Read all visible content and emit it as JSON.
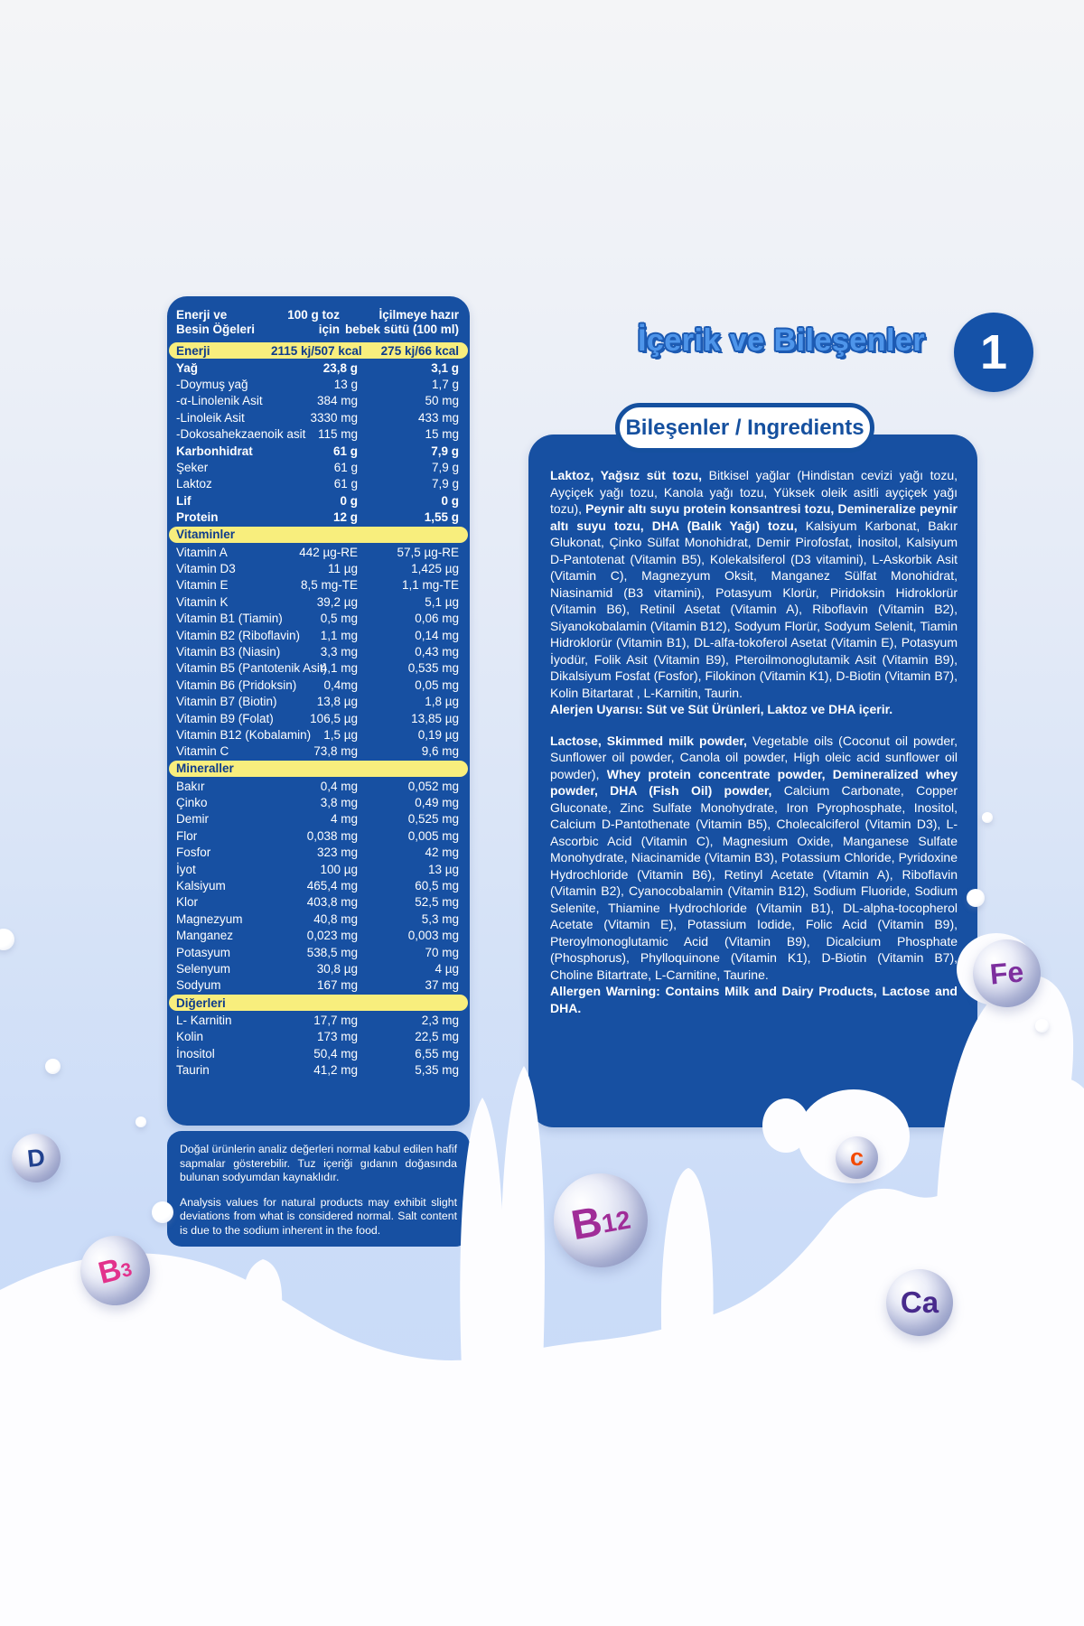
{
  "page": {
    "section_title": "İçerik ve Bileşenler",
    "section_number": "1",
    "pill_label": "Bileşenler / Ingredients"
  },
  "colors": {
    "panel_blue": "#1750A2",
    "band_yellow": "#F8EE7D",
    "band_text_blue": "#0D3B8C",
    "title_light_blue": "#4E95EA",
    "title_outline_blue": "#1D5BB3"
  },
  "nutrition_table": {
    "header": {
      "col1_line1": "Enerji ve",
      "col1_line2": "Besin Öğeleri",
      "col2_line1": "100 g toz",
      "col2_line2": "için",
      "col3_line1": "İçilmeye hazır",
      "col3_line2": "bebek sütü (100 ml)"
    },
    "rows": [
      {
        "kind": "band",
        "label": "Enerji",
        "v1": "2115 kj/507 kcal",
        "v2": "275 kj/66 kcal"
      },
      {
        "kind": "row",
        "bold": true,
        "label": "Yağ",
        "v1": "23,8 g",
        "v2": "3,1 g"
      },
      {
        "kind": "row",
        "bold": false,
        "label": "-Doymuş yağ",
        "v1": "13 g",
        "v2": "1,7 g"
      },
      {
        "kind": "row",
        "bold": false,
        "label": "-α-Linolenik Asit",
        "v1": "384 mg",
        "v2": "50 mg"
      },
      {
        "kind": "row",
        "bold": false,
        "label": "-Linoleik Asit",
        "v1": "3330 mg",
        "v2": "433 mg"
      },
      {
        "kind": "row",
        "bold": false,
        "label": "-Dokosahekzaenoik asit",
        "v1": "115 mg",
        "v2": "15 mg"
      },
      {
        "kind": "row",
        "bold": true,
        "label": "Karbonhidrat",
        "v1": "61 g",
        "v2": "7,9 g"
      },
      {
        "kind": "row",
        "bold": false,
        "label": "Şeker",
        "v1": "61 g",
        "v2": "7,9 g"
      },
      {
        "kind": "row",
        "bold": false,
        "label": "Laktoz",
        "v1": "61 g",
        "v2": "7,9 g"
      },
      {
        "kind": "row",
        "bold": true,
        "label": "Lif",
        "v1": "0 g",
        "v2": "0 g"
      },
      {
        "kind": "row",
        "bold": true,
        "label": "Protein",
        "v1": "12 g",
        "v2": "1,55 g"
      },
      {
        "kind": "band",
        "label": "Vitaminler",
        "v1": "",
        "v2": ""
      },
      {
        "kind": "row",
        "bold": false,
        "label": "Vitamin A",
        "v1": "442 µg-RE",
        "v2": "57,5 µg-RE"
      },
      {
        "kind": "row",
        "bold": false,
        "label": "Vitamin D3",
        "v1": "11 µg",
        "v2": "1,425 µg"
      },
      {
        "kind": "row",
        "bold": false,
        "label": "Vitamin E",
        "v1": "8,5 mg-TE",
        "v2": "1,1 mg-TE"
      },
      {
        "kind": "row",
        "bold": false,
        "label": "Vitamin K",
        "v1": "39,2 µg",
        "v2": "5,1 µg"
      },
      {
        "kind": "row",
        "bold": false,
        "label": "Vitamin B1 (Tiamin)",
        "v1": "0,5 mg",
        "v2": "0,06 mg"
      },
      {
        "kind": "row",
        "bold": false,
        "label": "Vitamin B2 (Riboflavin)",
        "v1": "1,1 mg",
        "v2": "0,14 mg"
      },
      {
        "kind": "row",
        "bold": false,
        "label": "Vitamin B3 (Niasin)",
        "v1": "3,3 mg",
        "v2": "0,43 mg"
      },
      {
        "kind": "row",
        "bold": false,
        "label": "Vitamin B5 (Pantotenik Asit)",
        "v1": "4,1 mg",
        "v2": "0,535 mg"
      },
      {
        "kind": "row",
        "bold": false,
        "label": "Vitamin B6 (Pridoksin)",
        "v1": "0,4mg",
        "v2": "0,05 mg"
      },
      {
        "kind": "row",
        "bold": false,
        "label": "Vitamin B7 (Biotin)",
        "v1": "13,8 µg",
        "v2": "1,8 µg"
      },
      {
        "kind": "row",
        "bold": false,
        "label": "Vitamin B9 (Folat)",
        "v1": "106,5 µg",
        "v2": "13,85 µg"
      },
      {
        "kind": "row",
        "bold": false,
        "label": "Vitamin B12 (Kobalamin)",
        "v1": "1,5 µg",
        "v2": "0,19 µg"
      },
      {
        "kind": "row",
        "bold": false,
        "label": "Vitamin C",
        "v1": "73,8 mg",
        "v2": "9,6 mg"
      },
      {
        "kind": "band",
        "label": "Mineraller",
        "v1": "",
        "v2": ""
      },
      {
        "kind": "row",
        "bold": false,
        "label": "Bakır",
        "v1": "0,4 mg",
        "v2": "0,052 mg"
      },
      {
        "kind": "row",
        "bold": false,
        "label": "Çinko",
        "v1": "3,8 mg",
        "v2": "0,49 mg"
      },
      {
        "kind": "row",
        "bold": false,
        "label": "Demir",
        "v1": "4 mg",
        "v2": "0,525 mg"
      },
      {
        "kind": "row",
        "bold": false,
        "label": "Flor",
        "v1": "0,038 mg",
        "v2": "0,005 mg"
      },
      {
        "kind": "row",
        "bold": false,
        "label": "Fosfor",
        "v1": "323 mg",
        "v2": "42 mg"
      },
      {
        "kind": "row",
        "bold": false,
        "label": "İyot",
        "v1": "100 µg",
        "v2": "13 µg"
      },
      {
        "kind": "row",
        "bold": false,
        "label": "Kalsiyum",
        "v1": "465,4 mg",
        "v2": "60,5 mg"
      },
      {
        "kind": "row",
        "bold": false,
        "label": "Klor",
        "v1": "403,8 mg",
        "v2": "52,5 mg"
      },
      {
        "kind": "row",
        "bold": false,
        "label": "Magnezyum",
        "v1": "40,8 mg",
        "v2": "5,3 mg"
      },
      {
        "kind": "row",
        "bold": false,
        "label": "Manganez",
        "v1": "0,023 mg",
        "v2": "0,003 mg"
      },
      {
        "kind": "row",
        "bold": false,
        "label": "Potasyum",
        "v1": "538,5 mg",
        "v2": "70 mg"
      },
      {
        "kind": "row",
        "bold": false,
        "label": "Selenyum",
        "v1": "30,8 µg",
        "v2": "4 µg"
      },
      {
        "kind": "row",
        "bold": false,
        "label": "Sodyum",
        "v1": "167 mg",
        "v2": "37 mg"
      },
      {
        "kind": "band",
        "label": "Diğerleri",
        "v1": "",
        "v2": ""
      },
      {
        "kind": "row",
        "bold": false,
        "label": "L- Karnitin",
        "v1": "17,7 mg",
        "v2": "2,3 mg"
      },
      {
        "kind": "row",
        "bold": false,
        "label": "Kolin",
        "v1": "173 mg",
        "v2": "22,5 mg"
      },
      {
        "kind": "row",
        "bold": false,
        "label": "İnositol",
        "v1": "50,4 mg",
        "v2": "6,55 mg"
      },
      {
        "kind": "row",
        "bold": false,
        "label": "Taurin",
        "v1": "41,2 mg",
        "v2": "5,35 mg"
      }
    ]
  },
  "note_box": {
    "tr": "Doğal ürünlerin analiz değerleri normal kabul edilen hafif sapmalar gösterebilir. Tuz içeriği gıdanın doğasında bulunan sodyumdan kaynaklıdır.",
    "en": "Analysis values for natural products may exhibit slight deviations from what is considered normal. Salt content is due to the sodium inherent in the food."
  },
  "ingredients": {
    "tr": {
      "segments": [
        {
          "b": true,
          "t": "Laktoz, Yağsız süt tozu, "
        },
        {
          "b": false,
          "t": "Bitkisel yağlar (Hindistan cevizi yağı tozu, Ayçiçek yağı tozu, Kanola yağı tozu, Yüksek oleik asitli ayçiçek yağı tozu), "
        },
        {
          "b": true,
          "t": "Peynir altı suyu protein konsantresi tozu, Demineralize peynir altı suyu tozu, DHA (Balık Yağı) tozu, "
        },
        {
          "b": false,
          "t": "Kalsiyum Karbonat, Bakır Glukonat, Çinko Sülfat Monohidrat, Demir Pirofosfat, İnositol, Kalsiyum D-Pantotenat (Vitamin B5), Kolekalsiferol (D3 vitamini), L-Askorbik Asit (Vitamin C), Magnezyum Oksit, Manganez Sülfat Monohidrat, Niasinamid (B3 vitamini), Potasyum Klorür, Piridoksin Hidroklorür (Vitamin B6), Retinil Asetat (Vitamin A), Riboflavin (Vitamin B2), Siyanokobalamin (Vitamin B12), Sodyum Florür, Sodyum Selenit, Tiamin Hidroklorür (Vitamin B1), DL-alfa-tokoferol Asetat (Vitamin E), Potasyum İyodür, Folik Asit (Vitamin B9), Pteroilmonoglutamik Asit (Vitamin B9), Dikalsiyum Fosfat (Fosfor), Filokinon (Vitamin K1), D-Biotin (Vitamin B7), Kolin Bitartarat , L-Karnitin, Taurin."
        }
      ],
      "allergen": "Alerjen Uyarısı: Süt ve Süt Ürünleri, Laktoz ve DHA içerir."
    },
    "en": {
      "segments": [
        {
          "b": true,
          "t": "Lactose, Skimmed milk powder, "
        },
        {
          "b": false,
          "t": "Vegetable oils (Coconut oil powder, Sunflower oil powder, Canola oil powder, High oleic acid sunflower oil powder), "
        },
        {
          "b": true,
          "t": "Whey protein concentrate powder, Demineralized whey powder, DHA (Fish Oil) powder, "
        },
        {
          "b": false,
          "t": "Calcium Carbonate, Copper Gluconate, Zinc Sulfate Monohydrate, Iron Pyrophosphate, Inositol, Calcium D-Pantothenate (Vitamin B5), Cholecalciferol (Vitamin D3), L-Ascorbic Acid (Vitamin C), Magnesium Oxide, Manganese Sulfate Monohydrate, Niacinamide (Vitamin B3), Potassium Chloride, Pyridoxine Hydrochloride (Vitamin B6), Retinyl Acetate (Vitamin A), Riboflavin (Vitamin B2), Cyanocobalamin (Vitamin B12), Sodium Fluoride, Sodium Selenite, Thiamine Hydrochloride (Vitamin B1), DL-alpha-tocopherol Acetate (Vitamin E), Potassium Iodide, Folic Acid (Vitamin B9), Pteroylmonoglutamic Acid (Vitamin B9), Dicalcium Phosphate (Phosphorus), Phylloquinone (Vitamin K1), D-Biotin (Vitamin B7), Choline Bitartrate, L-Carnitine, Taurine."
        }
      ],
      "allergen": "Allergen Warning: Contains Milk and Dairy Products, Lactose and DHA."
    }
  },
  "bubbles": [
    {
      "name": "vitamin-d-bubble",
      "main": "D",
      "sub": "",
      "color": "#21418E"
    },
    {
      "name": "vitamin-b3-bubble",
      "main": "B",
      "sub": "3",
      "color": "#E2328C"
    },
    {
      "name": "vitamin-b12-bubble",
      "main": "B",
      "sub": "12",
      "color": "#A02D98"
    },
    {
      "name": "vitamin-c-bubble",
      "main": "c",
      "sub": "",
      "color": "#F34A00"
    },
    {
      "name": "iron-fe-bubble",
      "main": "Fe",
      "sub": "",
      "color": "#7D2F9E"
    },
    {
      "name": "calcium-ca-bubble",
      "main": "Ca",
      "sub": "",
      "color": "#482A8C"
    }
  ]
}
